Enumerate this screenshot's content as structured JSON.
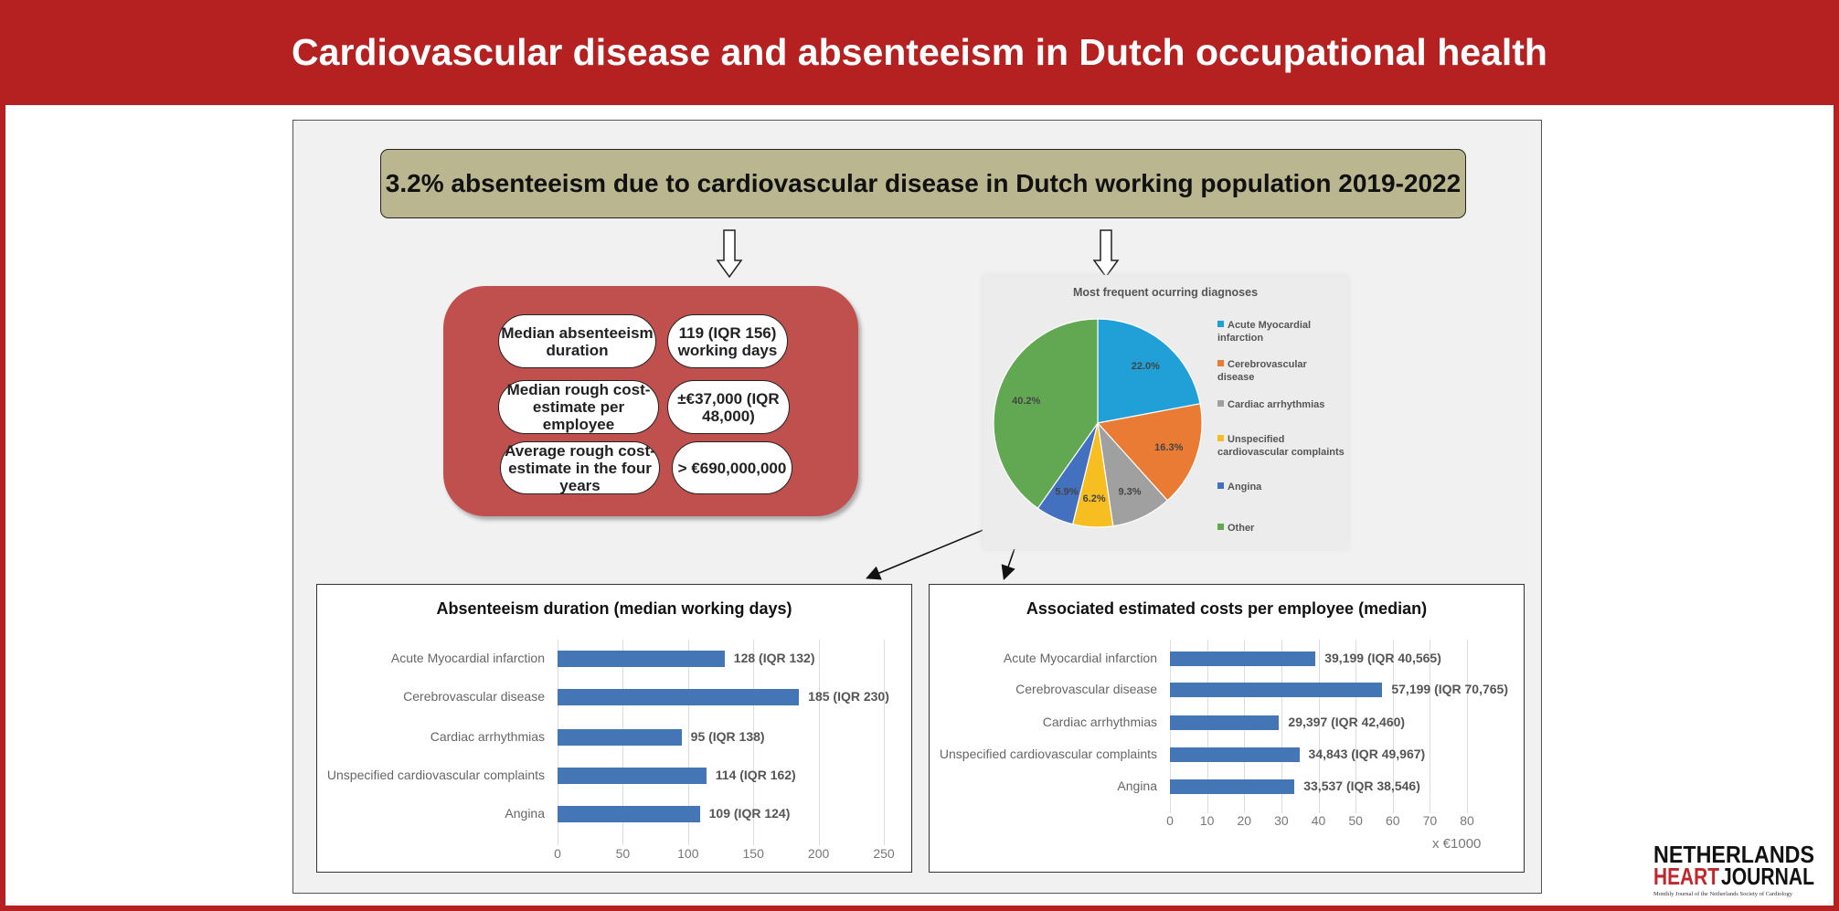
{
  "header": {
    "title": "Cardiovascular disease and absenteeism in Dutch occupational health"
  },
  "banner": {
    "text": "3.2% absenteeism due to cardiovascular disease in Dutch working population 2019-2022"
  },
  "summary": {
    "rows": [
      {
        "label": "Median absenteeism duration",
        "value": "119 (IQR 156) working days"
      },
      {
        "label": "Median rough cost-estimate per employee",
        "value": "±€37,000 (IQR 48,000)"
      },
      {
        "label": "Average rough cost-estimate in the four years",
        "value": "> €690,000,000"
      }
    ]
  },
  "logo": {
    "line1": "NETHERLANDS",
    "line2a": "HEART",
    "line2b": "JOURNAL",
    "tagline": "Monthly Journal of the Netherlands Society of Cardiology"
  },
  "colors": {
    "header": "#b52121",
    "banner": "#bab68f",
    "summary_box": "#c0504d",
    "bar": "#4475b5"
  },
  "chart_data": [
    {
      "type": "pie",
      "title": "Most frequent ocurring diagnoses",
      "categories": [
        "Acute Myocardial infarction",
        "Cerebrovascular disease",
        "Cardiac arrhythmias",
        "Unspecified cardiovascular complaints",
        "Angina",
        "Other"
      ],
      "values": [
        22.0,
        16.3,
        9.3,
        6.2,
        5.9,
        40.2
      ],
      "labels": [
        "22.0%",
        "16.3%",
        "9.3%",
        "6.2%",
        "5.9%",
        "40.2%"
      ],
      "colors": [
        "#21a0d8",
        "#ea7b35",
        "#a0a0a0",
        "#f7be22",
        "#4470c0",
        "#62a853"
      ],
      "legend": "right"
    },
    {
      "type": "bar",
      "orientation": "horizontal",
      "title": "Absenteeism duration (median working days)",
      "categories": [
        "Acute Myocardial infarction",
        "Cerebrovascular disease",
        "Cardiac arrhythmias",
        "Unspecified cardiovascular complaints",
        "Angina"
      ],
      "values": [
        128,
        185,
        95,
        114,
        109
      ],
      "data_labels": [
        "128 (IQR 132)",
        "185 (IQR 230)",
        "95 (IQR 138)",
        "114 (IQR 162)",
        "109 (IQR 124)"
      ],
      "xlim": [
        0,
        250
      ],
      "xticks": [
        0,
        50,
        100,
        150,
        200,
        250
      ],
      "xlabel": "",
      "grid": true
    },
    {
      "type": "bar",
      "orientation": "horizontal",
      "title": "Associated estimated costs per employee (median)",
      "categories": [
        "Acute Myocardial infarction",
        "Cerebrovascular disease",
        "Cardiac arrhythmias",
        "Unspecified cardiovascular complaints",
        "Angina"
      ],
      "values": [
        39.199,
        57.199,
        29.397,
        34.843,
        33.537
      ],
      "data_labels": [
        "39,199 (IQR 40,565)",
        "57,199 (IQR 70,765)",
        "29,397 (IQR 42,460)",
        "34,843 (IQR 49,967)",
        "33,537 (IQR 38,546)"
      ],
      "xlim": [
        0,
        80
      ],
      "xticks": [
        0,
        10,
        20,
        30,
        40,
        50,
        60,
        70,
        80
      ],
      "xlabel": "x €1000",
      "grid": true
    }
  ]
}
